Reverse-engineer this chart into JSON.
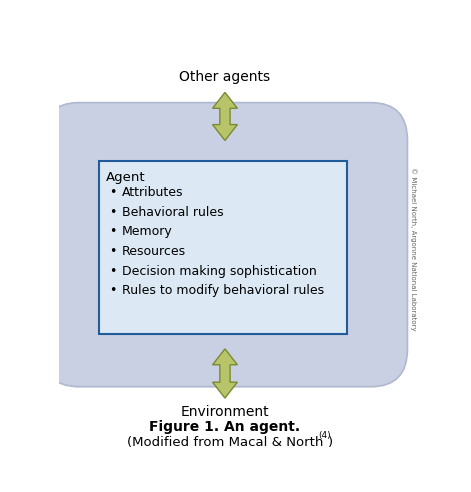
{
  "title_text": "Figure 1. An agent.",
  "other_agents_label": "Other agents",
  "environment_label": "Environment",
  "copyright_text": "© Michael North, Argonne National Laboratory",
  "agent_heading": "Agent",
  "bullet_items": [
    "Attributes",
    "Behavioral rules",
    "Memory",
    "Resources",
    "Decision making sophistication",
    "Rules to modify behavioral rules"
  ],
  "capsule_fill": "#c9d0e3",
  "capsule_edge": "#b0b8d0",
  "inner_box_edge": "#1f5c99",
  "inner_box_fill": "#dce9f5",
  "arrow_fill": "#b8c46a",
  "arrow_edge": "#7a8a30",
  "background": "#ffffff",
  "text_color": "#000000",
  "fig_width": 4.71,
  "fig_height": 4.92,
  "dpi": 100
}
